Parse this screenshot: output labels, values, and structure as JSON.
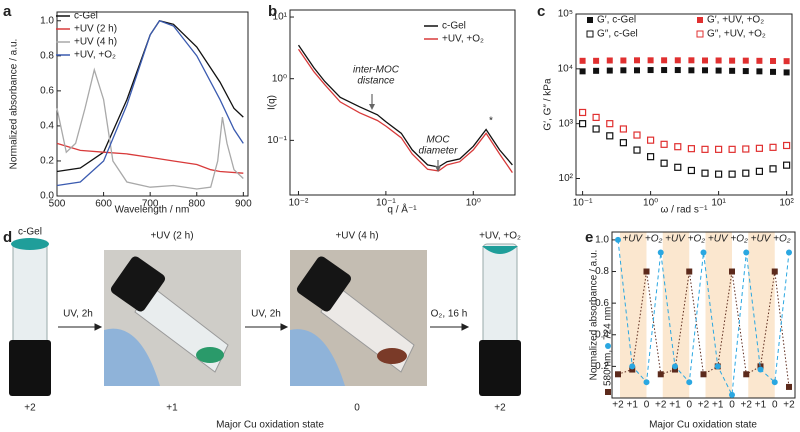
{
  "chart_data": [
    {
      "type": "line",
      "panel": "a",
      "xlabel": "Wavelength / nm",
      "ylabel": "Normalized absorbance / a.u.",
      "xlim": [
        500,
        910
      ],
      "ylim": [
        0,
        1.05
      ],
      "xticks": [
        500,
        600,
        700,
        800,
        900
      ],
      "yticks": [
        {
          "value": 0,
          "label": "0.0"
        },
        0.2,
        0.4,
        0.6,
        0.8,
        {
          "value": 1,
          "label": "1.0"
        }
      ],
      "legend": "upper left",
      "series": [
        {
          "name": "c-Gel",
          "color": "#111111",
          "x": [
            500,
            550,
            600,
            650,
            700,
            720,
            750,
            800,
            850,
            880,
            900
          ],
          "values": [
            0.14,
            0.16,
            0.25,
            0.55,
            0.92,
            1.0,
            0.98,
            0.85,
            0.65,
            0.5,
            0.45
          ]
        },
        {
          "name": "+UV (2 h)",
          "color": "#d83a3a",
          "x": [
            500,
            550,
            600,
            650,
            700,
            750,
            800,
            830,
            850,
            900
          ],
          "values": [
            0.3,
            0.26,
            0.25,
            0.24,
            0.22,
            0.2,
            0.18,
            0.15,
            0.14,
            0.13
          ]
        },
        {
          "name": "+UV (4 h)",
          "color": "#a9a9a9",
          "x": [
            500,
            520,
            540,
            560,
            580,
            600,
            620,
            650,
            700,
            750,
            800,
            830,
            845,
            855,
            865,
            880,
            900
          ],
          "values": [
            0.5,
            0.25,
            0.3,
            0.5,
            0.72,
            0.55,
            0.2,
            0.08,
            0.05,
            0.06,
            0.04,
            0.05,
            0.2,
            0.45,
            0.3,
            0.15,
            0.1
          ]
        },
        {
          "name": "+UV, +O₂",
          "color": "#3b5bb0",
          "x": [
            500,
            550,
            600,
            650,
            700,
            720,
            750,
            800,
            850,
            880,
            900
          ],
          "values": [
            0.06,
            0.08,
            0.2,
            0.52,
            0.92,
            1.0,
            0.97,
            0.8,
            0.55,
            0.38,
            0.3
          ]
        }
      ]
    },
    {
      "type": "line",
      "panel": "b",
      "xlabel": "q / Å⁻¹",
      "ylabel": "I(q)",
      "xscale": "log",
      "yscale": "log",
      "xlim": [
        0.008,
        3
      ],
      "ylim": [
        0.013,
        13
      ],
      "xticks": [
        {
          "value": 0.01,
          "label": "10⁻²"
        },
        {
          "value": 0.1,
          "label": "10⁻¹"
        },
        {
          "value": 1,
          "label": "10⁰"
        }
      ],
      "yticks": [
        {
          "value": 0.1,
          "label": "10⁻¹"
        },
        {
          "value": 1,
          "label": "10⁰"
        },
        {
          "value": 10,
          "label": "10¹"
        }
      ],
      "legend": "upper right",
      "annotations": [
        {
          "lines": [
            "inter-MOC",
            "distance"
          ]
        },
        {
          "lines": [
            "MOC",
            "diameter"
          ]
        },
        {
          "lines": [
            "*"
          ]
        }
      ],
      "series": [
        {
          "name": "c-Gel",
          "color": "#111111",
          "x": [
            0.01,
            0.015,
            0.02,
            0.03,
            0.05,
            0.08,
            0.1,
            0.15,
            0.2,
            0.3,
            0.4,
            0.5,
            0.7,
            1,
            1.4,
            2,
            2.8
          ],
          "values": [
            3.5,
            1.5,
            0.9,
            0.5,
            0.35,
            0.26,
            0.2,
            0.13,
            0.07,
            0.04,
            0.037,
            0.045,
            0.05,
            0.08,
            0.15,
            0.07,
            0.04
          ]
        },
        {
          "name": "+UV, +O₂",
          "color": "#d83a3a",
          "x": [
            0.01,
            0.015,
            0.02,
            0.03,
            0.05,
            0.08,
            0.1,
            0.15,
            0.2,
            0.3,
            0.4,
            0.5,
            0.7,
            1,
            1.4,
            2,
            2.8
          ],
          "values": [
            3.0,
            1.3,
            0.8,
            0.42,
            0.28,
            0.21,
            0.17,
            0.11,
            0.06,
            0.034,
            0.032,
            0.04,
            0.045,
            0.07,
            0.13,
            0.06,
            0.03
          ]
        }
      ]
    },
    {
      "type": "scatter",
      "panel": "c",
      "xlabel": "ω / rad s⁻¹",
      "ylabel": "G′, G″ / kPa",
      "xscale": "log",
      "yscale": "log",
      "xlim": [
        0.08,
        120
      ],
      "ylim": [
        50,
        100000
      ],
      "xticks": [
        {
          "value": 0.1,
          "label": "10⁻¹"
        },
        {
          "value": 1,
          "label": "10⁰"
        },
        {
          "value": 10,
          "label": "10¹"
        },
        {
          "value": 100,
          "label": "10²"
        }
      ],
      "yticks": [
        {
          "value": 100,
          "label": "10²"
        },
        {
          "value": 1000,
          "label": "10³"
        },
        {
          "value": 10000,
          "label": "10⁴"
        },
        {
          "value": 100000,
          "label": "10⁵"
        }
      ],
      "legend": "upper center",
      "x": [
        0.1,
        0.158,
        0.251,
        0.398,
        0.631,
        1,
        1.58,
        2.51,
        3.98,
        6.31,
        10,
        15.8,
        25.1,
        39.8,
        63.1,
        100
      ],
      "series": [
        {
          "name": "G′, c-Gel",
          "color": "#111111",
          "marker": "filled",
          "values": [
            9000,
            9200,
            9300,
            9400,
            9400,
            9500,
            9500,
            9500,
            9400,
            9400,
            9300,
            9200,
            9100,
            9000,
            8800,
            8600
          ]
        },
        {
          "name": "G″, c-Gel",
          "color": "#111111",
          "marker": "open",
          "values": [
            1000,
            800,
            600,
            450,
            330,
            250,
            190,
            160,
            140,
            125,
            120,
            120,
            125,
            135,
            150,
            175
          ]
        },
        {
          "name": "G′, +UV, +O₂",
          "color": "#e03030",
          "marker": "filled",
          "values": [
            14000,
            14000,
            14200,
            14200,
            14300,
            14300,
            14300,
            14300,
            14300,
            14200,
            14200,
            14100,
            14100,
            14000,
            13900,
            13800
          ]
        },
        {
          "name": "G″, +UV, +O₂",
          "color": "#e03030",
          "marker": "open",
          "values": [
            1600,
            1300,
            1000,
            800,
            620,
            500,
            420,
            380,
            350,
            340,
            340,
            340,
            345,
            355,
            370,
            400
          ]
        }
      ]
    },
    {
      "type": "line",
      "panel": "e",
      "xlabel": "Major Cu oxidation state",
      "ylabel": "Normalized absorbance / a.u.",
      "ylim": [
        0,
        1.05
      ],
      "yticks": [
        0.2,
        0.4,
        0.6,
        0.8,
        {
          "value": 1,
          "label": "1.0"
        }
      ],
      "legend": "left",
      "categories": [
        "+2",
        "+1",
        "0",
        "+2",
        "+1",
        "0",
        "+2",
        "+1",
        "0",
        "+2",
        "+1",
        "0",
        "+2"
      ],
      "phase_labels": [
        "+UV",
        "+O₂",
        "+UV",
        "+O₂",
        "+UV",
        "+O₂",
        "+UV",
        "+O₂"
      ],
      "series": [
        {
          "name": "580 nm,",
          "color": "#5c2a1c",
          "marker": "square",
          "dash": "dotted",
          "values": [
            0.15,
            0.18,
            0.8,
            0.15,
            0.18,
            0.8,
            0.15,
            0.2,
            0.8,
            0.15,
            0.2,
            0.8,
            0.07
          ]
        },
        {
          "name": "724 nm",
          "color": "#2aa7e1",
          "marker": "circle",
          "dash": "dashed",
          "values": [
            1.0,
            0.2,
            0.1,
            0.92,
            0.2,
            0.1,
            0.92,
            0.2,
            0.02,
            0.92,
            0.18,
            0.1,
            0.92
          ]
        }
      ]
    }
  ],
  "photo_panel": {
    "panel": "d",
    "captions": [
      "c-Gel",
      "+UV (2 h)",
      "+UV (4 h)",
      "+UV, +O₂"
    ],
    "steps": [
      "UV, 2h",
      "UV, 2h",
      "O₂, 16 h"
    ],
    "states": [
      "+2",
      "+1",
      "0",
      "+2"
    ],
    "xlabel": "Major Cu oxidation state"
  }
}
